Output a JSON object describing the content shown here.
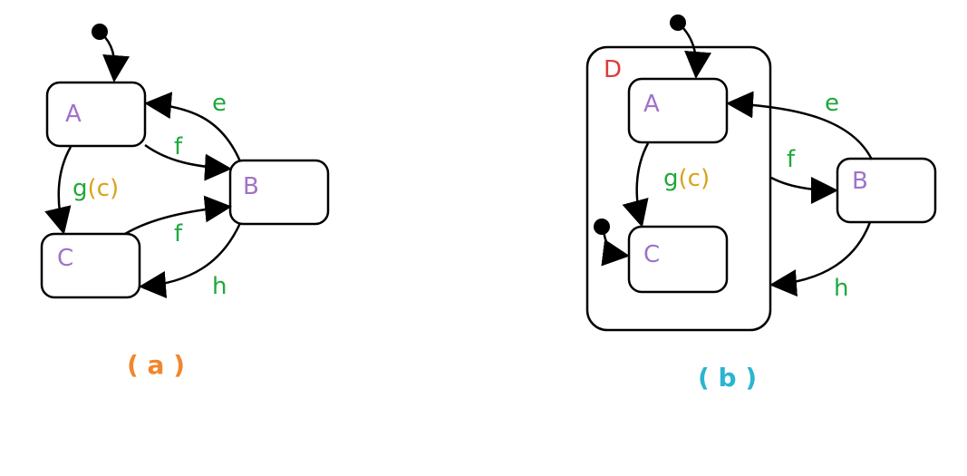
{
  "colors": {
    "state_label": "#a072c8",
    "event_label": "#1ea83c",
    "guard_label": "#d9a21a",
    "superstate_label": "#e03a3a",
    "caption_a": "#f0872d",
    "caption_b": "#2ab5d0"
  },
  "panel_a": {
    "caption": "( a )",
    "states": {
      "A": "A",
      "B": "B",
      "C": "C"
    },
    "events": {
      "e": "e",
      "f_top": "f",
      "f_bottom": "f",
      "g": "g",
      "guard_open": "(",
      "guard_cond": "c",
      "guard_close": ")",
      "h": "h"
    }
  },
  "panel_b": {
    "caption": "( b )",
    "superstate": "D",
    "states": {
      "A": "A",
      "B": "B",
      "C": "C"
    },
    "events": {
      "e": "e",
      "f": "f",
      "g": "g",
      "guard_open": "(",
      "guard_cond": "c",
      "guard_close": ")",
      "h": "h"
    }
  }
}
